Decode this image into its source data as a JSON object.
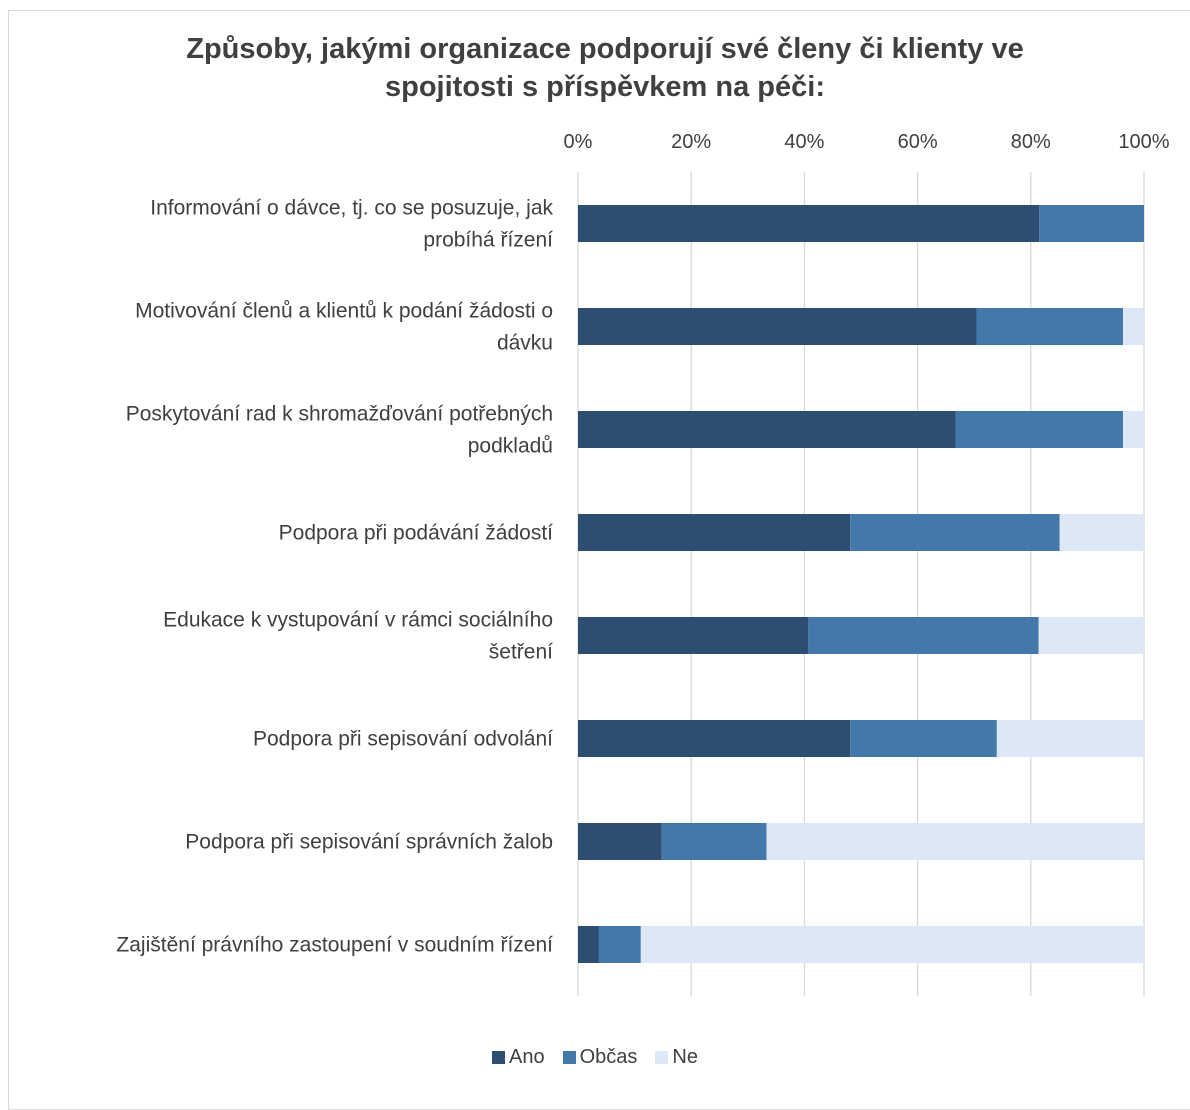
{
  "chart_data": {
    "type": "bar",
    "orientation": "horizontal",
    "stacked": "percent",
    "title": "Způsoby, jakými organizace podporují své členy či klienty ve spojitosti s příspěvkem na péči:",
    "title_lines": [
      "Způsoby, jakými organizace podporují své členy či klienty ve",
      "spojitosti s příspěvkem na péči:"
    ],
    "categories": [
      [
        "Informování o dávce, tj. co se posuzuje, jak",
        "probíhá řízení"
      ],
      [
        "Motivování členů a klientů k podání žádosti o",
        "dávku"
      ],
      [
        "Poskytování rad k shromažďování potřebných",
        "podkladů"
      ],
      [
        "Podpora při podávání žádostí"
      ],
      [
        "Edukace k vystupování v rámci sociálního",
        "šetření"
      ],
      [
        "Podpora při sepisování odvolání"
      ],
      [
        "Podpora při sepisování správních žalob"
      ],
      [
        "Zajištění právního zastoupení v soudním řízení"
      ]
    ],
    "series": [
      {
        "name": "Ano",
        "color": "#2e4d72",
        "values": [
          81.5,
          70.4,
          66.7,
          48.1,
          40.7,
          48.1,
          14.8,
          3.7
        ]
      },
      {
        "name": "Občas",
        "color": "#4578aa",
        "values": [
          18.5,
          25.9,
          29.6,
          37.0,
          40.7,
          25.9,
          18.5,
          7.4
        ]
      },
      {
        "name": "Ne",
        "color": "#dce8f5",
        "values": [
          0.0,
          3.7,
          3.7,
          14.9,
          18.6,
          26.0,
          66.7,
          88.9
        ]
      }
    ],
    "xlim": [
      0,
      100
    ],
    "xticks": [
      "0%",
      "20%",
      "40%",
      "60%",
      "80%",
      "100%"
    ],
    "xaxis_position": "top",
    "grid": true,
    "legend": "bottom"
  }
}
